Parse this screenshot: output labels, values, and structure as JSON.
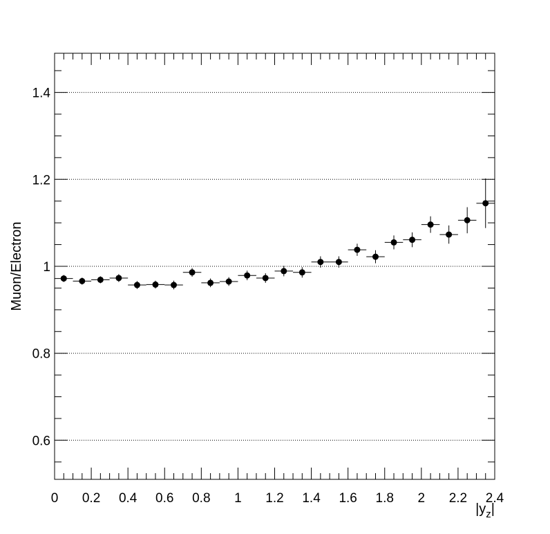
{
  "chart_data": {
    "type": "scatter",
    "title": "",
    "xlabel": "|y_z|",
    "ylabel": "Muon/Electron",
    "xlim": [
      0,
      2.4
    ],
    "ylim": [
      0.51,
      1.49
    ],
    "grid": "y-major dotted",
    "xticks": [
      "0",
      "0.2",
      "0.4",
      "0.6",
      "0.8",
      "1",
      "1.2",
      "1.4",
      "1.6",
      "1.8",
      "2",
      "2.2",
      "2.4"
    ],
    "yticks": [
      "0.6",
      "0.8",
      "1",
      "1.2",
      "1.4"
    ],
    "series": [
      {
        "x": [
          0.05,
          0.15,
          0.25,
          0.35,
          0.45,
          0.55,
          0.65,
          0.75,
          0.85,
          0.95,
          1.05,
          1.15,
          1.25,
          1.35,
          1.45,
          1.55,
          1.65,
          1.75,
          1.85,
          1.95,
          2.05,
          2.15,
          2.25,
          2.35
        ],
        "y": [
          0.972,
          0.966,
          0.969,
          0.973,
          0.957,
          0.958,
          0.957,
          0.986,
          0.962,
          0.965,
          0.979,
          0.973,
          0.989,
          0.986,
          1.01,
          1.01,
          1.038,
          1.022,
          1.055,
          1.061,
          1.096,
          1.073,
          1.106,
          1.145
        ],
        "yerr": [
          0.008,
          0.008,
          0.008,
          0.009,
          0.009,
          0.009,
          0.01,
          0.01,
          0.01,
          0.01,
          0.011,
          0.011,
          0.012,
          0.012,
          0.013,
          0.013,
          0.014,
          0.015,
          0.016,
          0.017,
          0.019,
          0.021,
          0.03,
          0.057
        ],
        "xerr": 0.05,
        "marker": "circle",
        "color": "#000000"
      }
    ]
  }
}
